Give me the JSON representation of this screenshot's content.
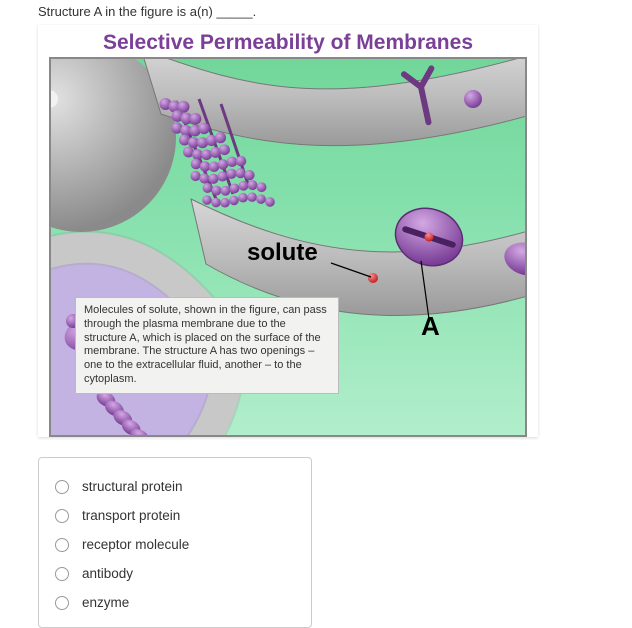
{
  "question_text": "Structure A in the figure is a(n) _____.",
  "figure": {
    "title": "Selective Permeability of Membranes",
    "title_color": "#7b3f98",
    "solute_label": "solute",
    "a_label": "A",
    "tooltip_text": "Molecules of solute, shown in the figure, can pass through the plasma membrane due to the structure A, which is placed on the surface of the membrane. The structure A has two openings – one to the extracellular fluid, another – to the cytoplasm.",
    "colors": {
      "membrane_grey": "#b8b8b8",
      "membrane_grey_dark": "#8a8a8a",
      "purple": "#9c5fb3",
      "purple_dark": "#6d3a82",
      "purple_light": "#c9a3d9",
      "cytoplasm": "#c3b3e3",
      "background_green_top": "#72d69a",
      "background_green_bottom": "#b1eecb",
      "solute_red": "#d93a3a",
      "tooltip_bg": "#f2f2f0",
      "tooltip_border": "#bbbbbb"
    }
  },
  "options": [
    {
      "label": "structural protein"
    },
    {
      "label": "transport protein"
    },
    {
      "label": "receptor molecule"
    },
    {
      "label": "antibody"
    },
    {
      "label": "enzyme"
    }
  ]
}
